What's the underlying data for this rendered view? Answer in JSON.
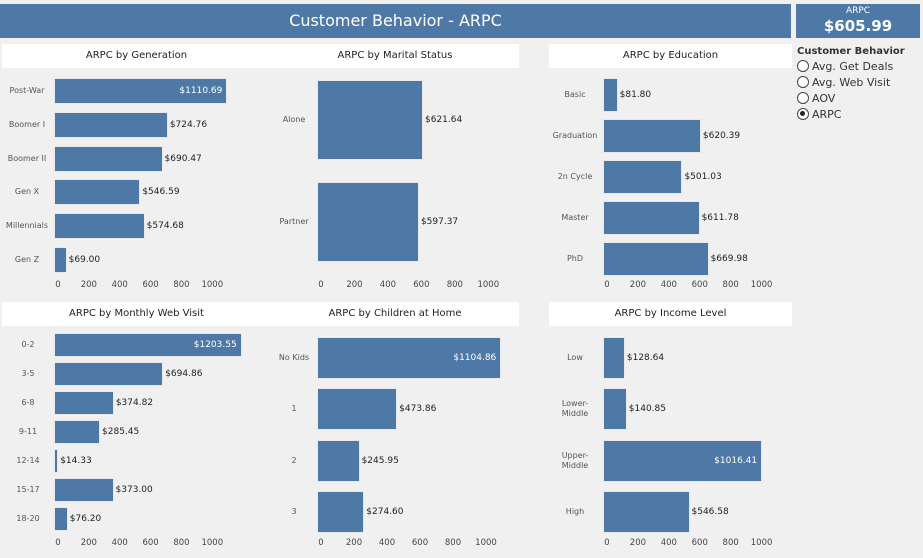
{
  "header": {
    "title": "Customer Behavior - ARPC"
  },
  "kpi": {
    "label": "ARPC",
    "value": "$605.99"
  },
  "parameter": {
    "title": "Customer Behavior",
    "options": [
      {
        "label": "Avg. Get Deals",
        "selected": false
      },
      {
        "label": "Avg. Web Visit",
        "selected": false
      },
      {
        "label": "AOV",
        "selected": false
      },
      {
        "label": "ARPC",
        "selected": true
      }
    ]
  },
  "colors": {
    "bar": "#4e79a7",
    "header": "#4e79a7",
    "background": "#f0f0f0"
  },
  "chart_data": [
    {
      "type": "bar",
      "orientation": "horizontal",
      "title": "ARPC by Generation",
      "categories": [
        "Post-War",
        "Boomer I",
        "Boomer II",
        "Gen X",
        "Millennials",
        "Gen Z"
      ],
      "values": [
        1110.69,
        724.76,
        690.47,
        546.59,
        574.68,
        69.0
      ],
      "labels": [
        "$1110.69",
        "$724.76",
        "$690.47",
        "$546.59",
        "$574.68",
        "$69.00"
      ],
      "ticks": [
        "0",
        "200",
        "400",
        "600",
        "800",
        "1000"
      ],
      "xlim": [
        0,
        1150
      ]
    },
    {
      "type": "bar",
      "orientation": "horizontal",
      "title": "ARPC by Marital Status",
      "categories": [
        "Alone",
        "Partner"
      ],
      "values": [
        621.64,
        597.37
      ],
      "labels": [
        "$621.64",
        "$597.37"
      ],
      "ticks": [
        "0",
        "200",
        "400",
        "600",
        "800",
        "1000"
      ],
      "xlim": [
        0,
        1150
      ]
    },
    {
      "type": "bar",
      "orientation": "horizontal",
      "title": "ARPC by Education",
      "categories": [
        "Basic",
        "Graduation",
        "2n Cycle",
        "Master",
        "PhD"
      ],
      "values": [
        81.8,
        620.39,
        501.03,
        611.78,
        669.98
      ],
      "labels": [
        "$81.80",
        "$620.39",
        "$501.03",
        "$611.78",
        "$669.98"
      ],
      "ticks": [
        "0",
        "200",
        "400",
        "600",
        "800",
        "1000"
      ],
      "xlim": [
        0,
        1150
      ]
    },
    {
      "type": "bar",
      "orientation": "horizontal",
      "title": "ARPC by Monthly Web Visit",
      "categories": [
        "0-2",
        "3-5",
        "6-8",
        "9-11",
        "12-14",
        "15-17",
        "18-20"
      ],
      "values": [
        1203.55,
        694.86,
        374.82,
        285.45,
        14.33,
        373.0,
        76.2
      ],
      "labels": [
        "$1203.55",
        "$694.86",
        "$374.82",
        "$285.45",
        "$14.33",
        "$373.00",
        "$76.20"
      ],
      "ticks": [
        "0",
        "200",
        "400",
        "600",
        "800",
        "1000"
      ],
      "xlim": [
        0,
        1220
      ]
    },
    {
      "type": "bar",
      "orientation": "horizontal",
      "title": "ARPC by Children at Home",
      "categories": [
        "No Kids",
        "1",
        "2",
        "3"
      ],
      "values": [
        1104.86,
        473.86,
        245.95,
        274.6
      ],
      "labels": [
        "$1104.86",
        "$473.86",
        "$245.95",
        "$274.60"
      ],
      "ticks": [
        "0",
        "200",
        "400",
        "600",
        "800",
        "1000"
      ],
      "xlim": [
        0,
        1150
      ]
    },
    {
      "type": "bar",
      "orientation": "horizontal",
      "title": "ARPC by Income Level",
      "categories": [
        "Low",
        "Lower-\nMiddle",
        "Upper-\nMiddle",
        "High"
      ],
      "values": [
        128.64,
        140.85,
        1016.41,
        546.58
      ],
      "labels": [
        "$128.64",
        "$140.85",
        "$1016.41",
        "$546.58"
      ],
      "ticks": [
        "0",
        "200",
        "400",
        "600",
        "800",
        "1000"
      ],
      "xlim": [
        0,
        1150
      ]
    }
  ]
}
